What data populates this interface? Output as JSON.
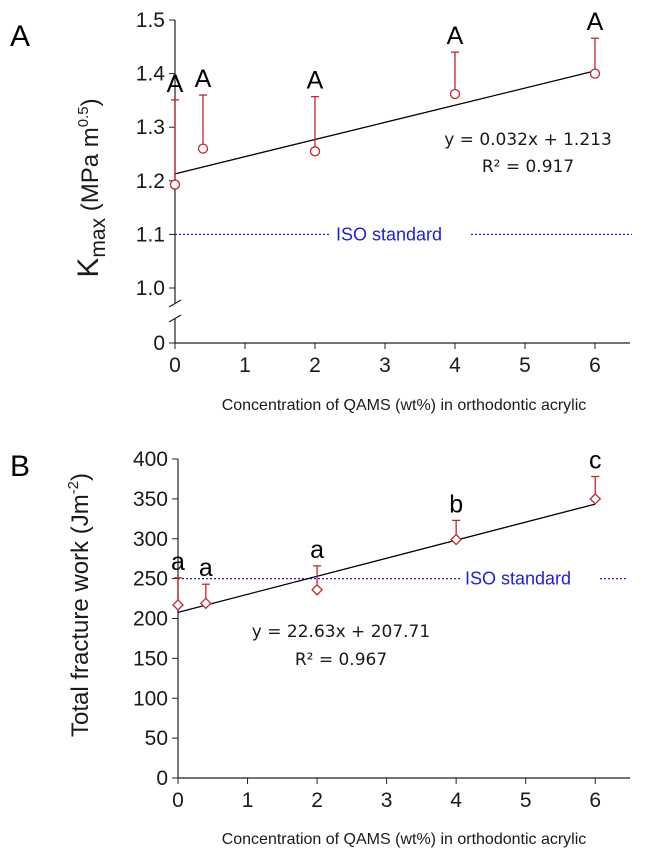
{
  "colors": {
    "points": "#c0272d",
    "iso_line": "#1f1fd4",
    "axes": "#222222",
    "fit": "#000000"
  },
  "chart_data": [
    {
      "panel": "A",
      "type": "scatter",
      "marker": "circle",
      "xlabel": "Concentration of QAMS (wt%) in orthodontic acrylic",
      "ylabel_main": "K",
      "ylabel_sub": "max",
      "ylabel_unit_open": " (MPa m",
      "ylabel_unit_sup": "0.5",
      "ylabel_unit_close": ")",
      "xlim": [
        0,
        6.5
      ],
      "ylim": [
        1.0,
        1.5
      ],
      "axis_break": true,
      "x_ticks": [
        0,
        1,
        2,
        3,
        4,
        5,
        6
      ],
      "x_tick_labels": [
        "0",
        "1",
        "2",
        "3",
        "4",
        "5",
        "6"
      ],
      "y_ticks": [
        1.0,
        1.1,
        1.2,
        1.3,
        1.4,
        1.5
      ],
      "y_tick_labels": [
        "1.0",
        "1.1",
        "1.2",
        "1.3",
        "1.4",
        "1.5"
      ],
      "y_zero_label": "0",
      "grid": false,
      "points": [
        {
          "x": 0,
          "y": 1.193,
          "err": 0.158,
          "group": "A"
        },
        {
          "x": 0.4,
          "y": 1.26,
          "err": 0.1,
          "group": "A"
        },
        {
          "x": 2,
          "y": 1.255,
          "err": 0.102,
          "group": "A"
        },
        {
          "x": 4,
          "y": 1.362,
          "err": 0.078,
          "group": "A"
        },
        {
          "x": 6,
          "y": 1.4,
          "err": 0.066,
          "group": "A"
        }
      ],
      "fit": {
        "slope": 0.032,
        "intercept": 1.213,
        "x_range": [
          0,
          6
        ]
      },
      "equation": "y = 0.032x + 1.213",
      "r2": "R² = 0.917",
      "iso": {
        "value": 1.1,
        "label": "ISO standard"
      }
    },
    {
      "panel": "B",
      "type": "scatter",
      "marker": "diamond",
      "xlabel": "Concentration of QAMS (wt%) in orthodontic acrylic",
      "ylabel_main": "Total fracture work (Jm",
      "ylabel_unit_sup": "-2",
      "ylabel_unit_close": ")",
      "xlim": [
        0,
        6.5
      ],
      "ylim": [
        0,
        400
      ],
      "x_ticks": [
        0,
        1,
        2,
        3,
        4,
        5,
        6
      ],
      "x_tick_labels": [
        "0",
        "1",
        "2",
        "3",
        "4",
        "5",
        "6"
      ],
      "y_ticks": [
        0,
        50,
        100,
        150,
        200,
        250,
        300,
        350,
        400
      ],
      "y_tick_labels": [
        "0",
        "50",
        "100",
        "150",
        "200",
        "250",
        "300",
        "350",
        "400"
      ],
      "grid": false,
      "points": [
        {
          "x": 0,
          "y": 217,
          "err": 34,
          "group": "a"
        },
        {
          "x": 0.4,
          "y": 219,
          "err": 24,
          "group": "a"
        },
        {
          "x": 2,
          "y": 236,
          "err": 30,
          "group": "a"
        },
        {
          "x": 4,
          "y": 299,
          "err": 24,
          "group": "b"
        },
        {
          "x": 6,
          "y": 350,
          "err": 28,
          "group": "c"
        }
      ],
      "fit": {
        "slope": 22.63,
        "intercept": 207.71,
        "x_range": [
          0,
          6
        ]
      },
      "equation": "y = 22.63x + 207.71",
      "r2": "R² = 0.967",
      "iso": {
        "value": 250,
        "label": "ISO standard"
      }
    }
  ]
}
